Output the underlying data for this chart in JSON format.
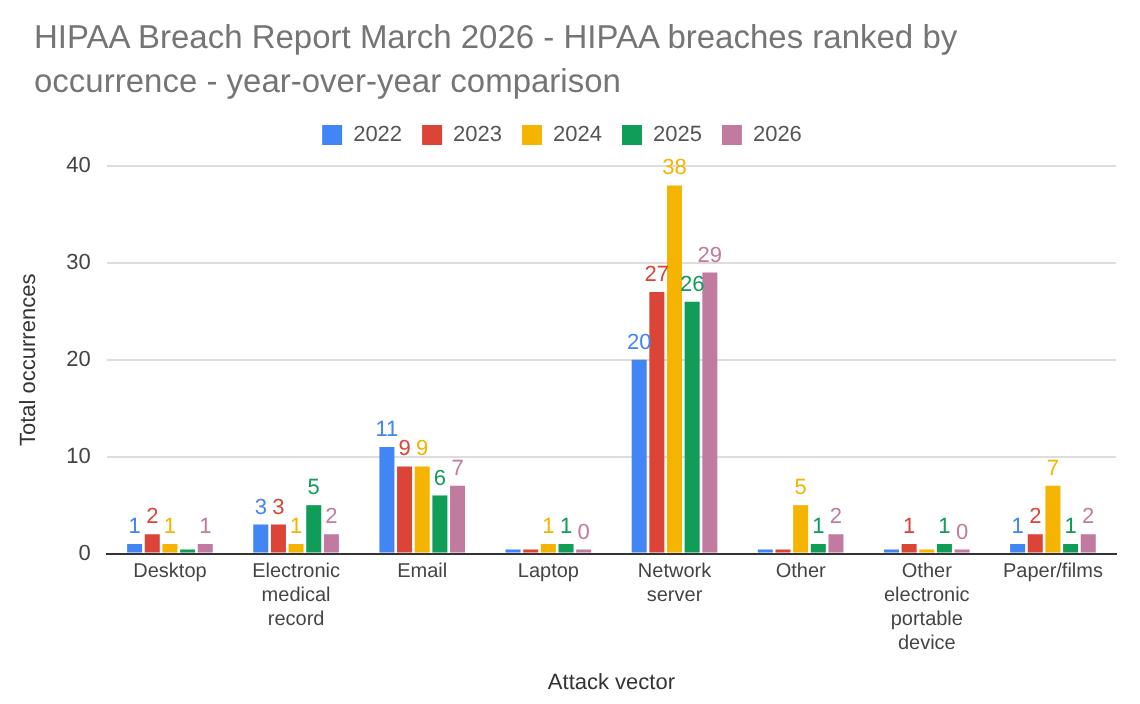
{
  "chart_data": {
    "type": "bar",
    "title": "HIPAA Breach Report March 2026 - HIPAA breaches ranked by occurrence - year-over-year comparison",
    "xlabel": "Attack vector",
    "ylabel": "Total occurrences",
    "categories": [
      "Desktop",
      "Electronic medical record",
      "Email",
      "Laptop",
      "Network server",
      "Other",
      "Other electronic portable device",
      "Paper/films"
    ],
    "series": [
      {
        "name": "2022",
        "color": "#4285f4",
        "values": [
          1,
          3,
          11,
          0,
          20,
          0,
          0,
          1
        ],
        "value_labels": [
          "1",
          "3",
          "11",
          null,
          "20",
          null,
          null,
          "1"
        ]
      },
      {
        "name": "2023",
        "color": "#db4437",
        "values": [
          2,
          3,
          9,
          0,
          27,
          0,
          1,
          2
        ],
        "value_labels": [
          "2",
          "3",
          "9",
          null,
          "27",
          null,
          "1",
          "2"
        ]
      },
      {
        "name": "2024",
        "color": "#f4b400",
        "values": [
          1,
          1,
          9,
          1,
          38,
          5,
          0,
          7
        ],
        "value_labels": [
          "1",
          "1",
          "9",
          "1",
          "38",
          "5",
          null,
          "7"
        ]
      },
      {
        "name": "2025",
        "color": "#0f9d58",
        "values": [
          0,
          5,
          6,
          1,
          26,
          1,
          1,
          1
        ],
        "value_labels": [
          null,
          "5",
          "6",
          "1",
          "26",
          "1",
          "1",
          "1"
        ]
      },
      {
        "name": "2026",
        "color": "#c27ba0",
        "values": [
          1,
          2,
          7,
          0,
          29,
          2,
          0,
          2
        ],
        "value_labels": [
          "1",
          "2",
          "7",
          "0",
          "29",
          "2",
          "0",
          "2"
        ]
      }
    ],
    "ylim": [
      0,
      40
    ],
    "yticks": [
      0,
      10,
      20,
      30,
      40
    ],
    "grid": "y",
    "legend": "top"
  }
}
